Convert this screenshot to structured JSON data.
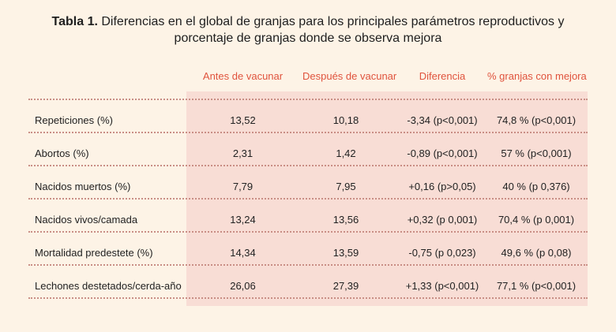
{
  "title": {
    "prefix": "Tabla 1.",
    "line1": "Diferencias en el global de granjas para los principales parámetros reproductivos  y",
    "line2": "porcentaje de granjas donde se observa mejora"
  },
  "table": {
    "headers": [
      "Antes de vacunar",
      "Después de vacunar",
      "Diferencia",
      "% granjas con mejora"
    ],
    "rows": [
      {
        "label": "Repeticiones (%)",
        "antes": "13,52",
        "despues": "10,18",
        "diferencia": "-3,34 (p<0,001)",
        "mejora": "74,8 % (p<0,001)"
      },
      {
        "label": "Abortos (%)",
        "antes": "2,31",
        "despues": "1,42",
        "diferencia": "-0,89 (p<0,001)",
        "mejora": "57 % (p<0,001)"
      },
      {
        "label": "Nacidos muertos (%)",
        "antes": "7,79",
        "despues": "7,95",
        "diferencia": "+0,16 (p>0,05)",
        "mejora": "40 % (p 0,376)"
      },
      {
        "label": "Nacidos vivos/camada",
        "antes": "13,24",
        "despues": "13,56",
        "diferencia": "+0,32 (p 0,001)",
        "mejora": "70,4 % (p 0,001)"
      },
      {
        "label": "Mortalidad predestete (%)",
        "antes": "14,34",
        "despues": "13,59",
        "diferencia": "-0,75 (p 0,023)",
        "mejora": "49,6 % (p 0,08)"
      },
      {
        "label": "Lechones destetados/cerda-año",
        "antes": "26,06",
        "despues": "27,39",
        "diferencia": "+1,33 (p<0,001)",
        "mejora": "77,1 % (p<0,001)"
      }
    ]
  },
  "colors": {
    "background": "#fdf3e6",
    "header_text": "#e0533d",
    "shade": "#f8ddd5",
    "rule": "#c98e85"
  }
}
